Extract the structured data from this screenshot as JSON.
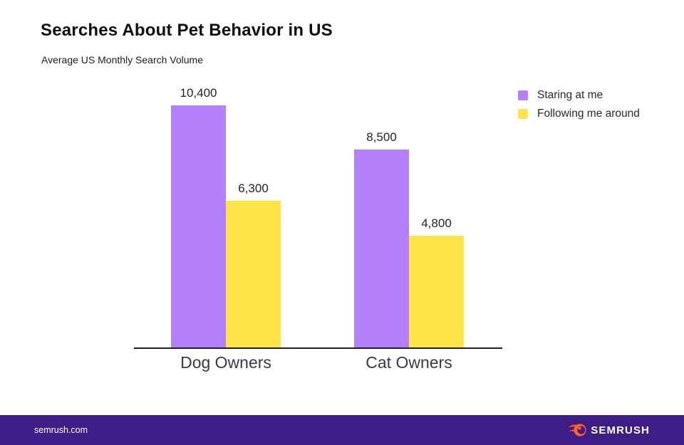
{
  "page": {
    "title": "Searches About Pet Behavior in US",
    "subtitle": "Average US Monthly Search Volume"
  },
  "chart_data": {
    "type": "bar",
    "title": "Searches About Pet Behavior in US",
    "subtitle": "Average US Monthly Search Volume",
    "xlabel": "",
    "ylabel": "Average US Monthly Search Volume",
    "categories": [
      "Dog Owners",
      "Cat Owners"
    ],
    "series": [
      {
        "name": "Staring at me",
        "color": "#B480FB",
        "values": [
          10400,
          8500
        ],
        "display": [
          "10,400",
          "8,500"
        ]
      },
      {
        "name": "Following me around",
        "color": "#FDE449",
        "values": [
          6300,
          4800
        ],
        "display": [
          "6,300",
          "4,800"
        ]
      }
    ],
    "ylim": [
      0,
      11000
    ],
    "grid": false,
    "legend_position": "top-right",
    "value_labels": true,
    "axis_color": "#1E1E1E"
  },
  "footer": {
    "site": "semrush.com",
    "brand": "SEMRUSH",
    "background": "#3F1D87",
    "logo_icon": "semrush-fireball-icon",
    "logo_orange": "#FF642D",
    "logo_flame": "#FF4A25"
  }
}
